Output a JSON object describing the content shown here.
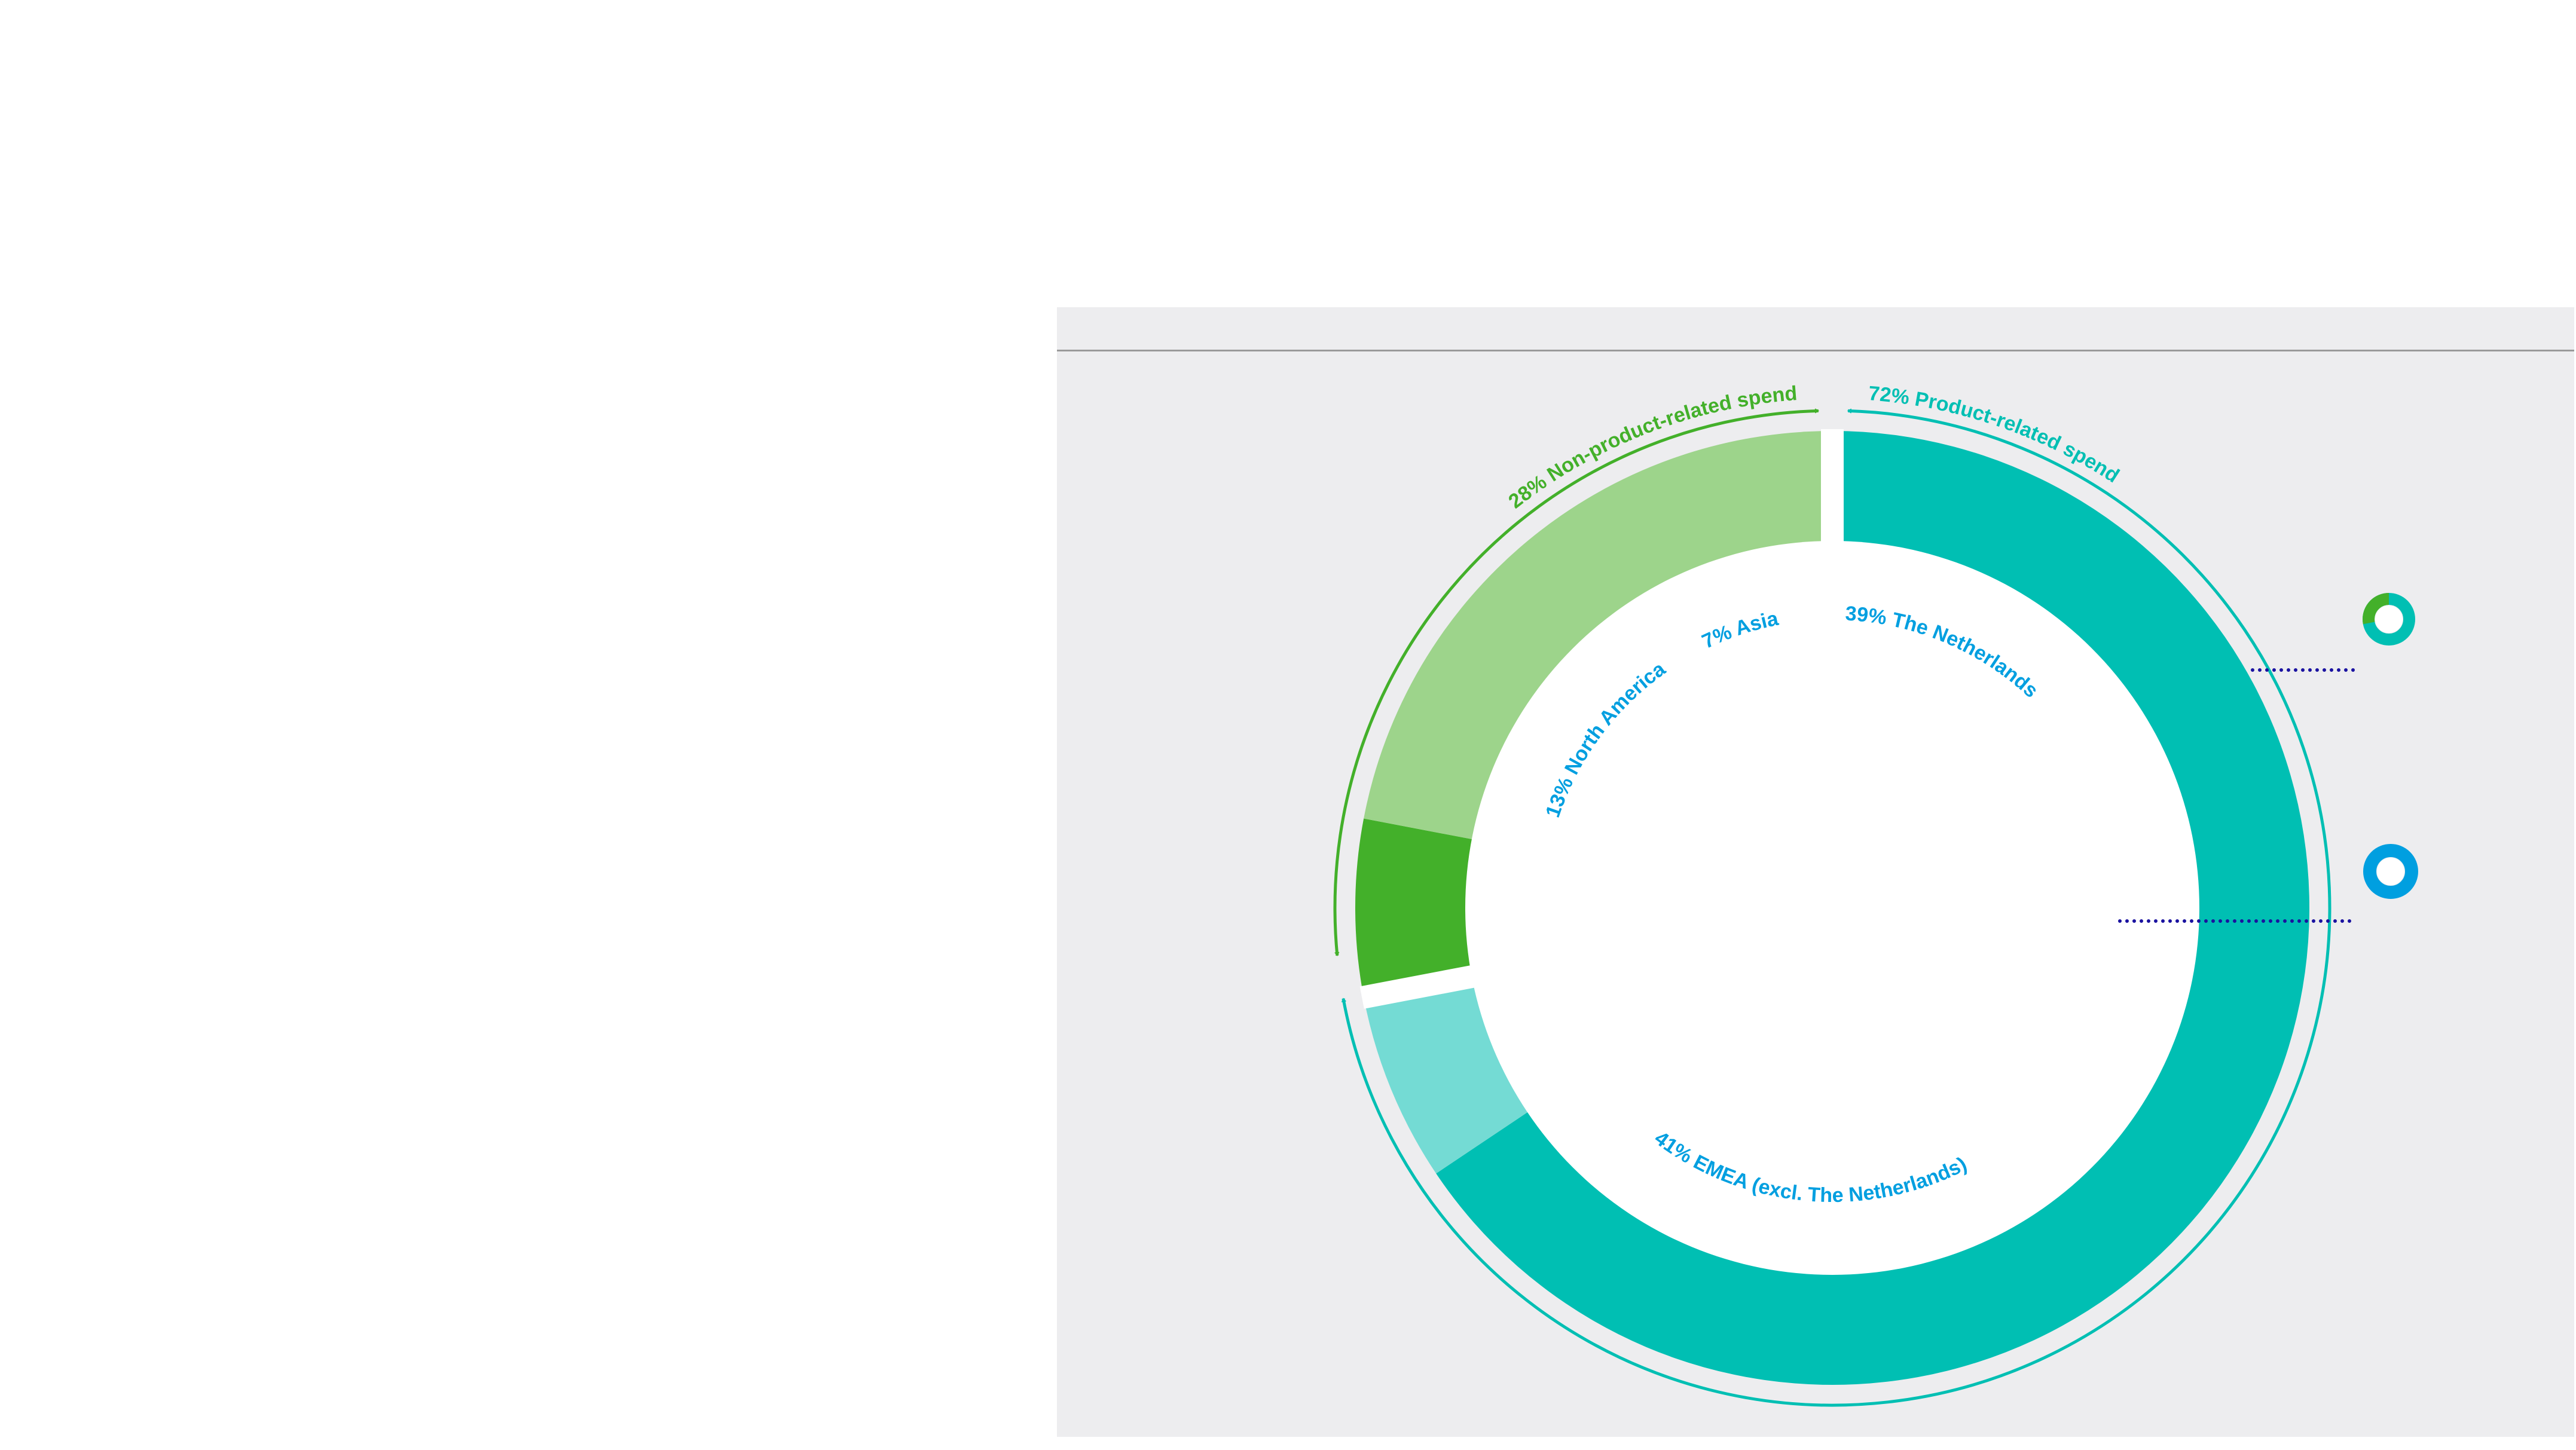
{
  "chart_data": {
    "type": "pie",
    "variant": "donut",
    "ring_segments": [
      {
        "group": "product",
        "value": 65.6,
        "color": "#00bfb3"
      },
      {
        "group": "product",
        "value": 6.4,
        "color": "#74dbd4"
      },
      {
        "group": "non-product",
        "value": 6.0,
        "color": "#43b02a"
      },
      {
        "group": "non-product",
        "value": 22.0,
        "color": "#9dd48b"
      }
    ],
    "groups": [
      {
        "label": "72% Product-related spend",
        "value": 72,
        "color": "#00bfb3"
      },
      {
        "label": "28% Non-product-related spend",
        "value": 28,
        "color": "#43b02a"
      }
    ],
    "categories": [
      "The Netherlands",
      "EMEA (excl. The Netherlands)",
      "North America",
      "Asia"
    ],
    "values": [
      39,
      41,
      13,
      7
    ],
    "category_labels": {
      "netherlands": "39% The Netherlands",
      "emea": "41% EMEA (excl. The Netherlands)",
      "north_america": "13% North America",
      "asia": "7% Asia"
    },
    "label_color": "#009fe0"
  },
  "legend_icons": [
    {
      "name": "mini-donut-icon",
      "colors": [
        "#43b02a",
        "#00bfb3"
      ]
    },
    {
      "name": "blue-ring-icon",
      "colors": [
        "#009fe0"
      ]
    }
  ],
  "colors": {
    "panel_bg": "#ededef",
    "leader_dots": "#1a12a0"
  }
}
